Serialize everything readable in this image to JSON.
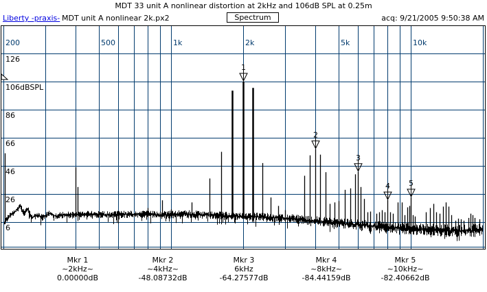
{
  "header": {
    "title": "MDT 33 unit A nonlinear distortion at 2kHz and 106dB SPL at 0.25m",
    "app_link": "Liberty -praxis-",
    "file_name": "MDT unit A nonlinear 2k.px2",
    "view_button": "Spectrum",
    "acquired": "acq: 9/21/2005 9:50:38 AM"
  },
  "chart_data": {
    "type": "line",
    "title": "Spectrum",
    "grid_color": "#003a6d",
    "trace_color": "#000000",
    "x_axis": {
      "scale": "log",
      "min_hz": 200,
      "max_hz": 20000,
      "gridlines_hz": [
        200,
        300,
        400,
        500,
        600,
        700,
        800,
        900,
        1000,
        2000,
        3000,
        4000,
        5000,
        6000,
        7000,
        8000,
        9000,
        10000,
        20000
      ],
      "labels": [
        {
          "f": 200,
          "text": "200"
        },
        {
          "f": 500,
          "text": "500"
        },
        {
          "f": 1000,
          "text": "1k"
        },
        {
          "f": 2000,
          "text": "2k"
        },
        {
          "f": 5000,
          "text": "5k"
        },
        {
          "f": 10000,
          "text": "10k"
        }
      ]
    },
    "y_axis": {
      "unit": "dBSPL",
      "ref_db": 106,
      "gridline_step_db": 20,
      "labels": [
        {
          "db": 126,
          "text": "126"
        },
        {
          "db": 106,
          "text": "106dBSPL"
        },
        {
          "db": 86,
          "text": "86"
        },
        {
          "db": 66,
          "text": "66"
        },
        {
          "db": 46,
          "text": "46"
        },
        {
          "db": 26,
          "text": "26"
        },
        {
          "db": 6,
          "text": "6"
        }
      ]
    },
    "peaks_hz_dbspl": [
      [
        202,
        55
      ],
      [
        400,
        45
      ],
      [
        408,
        31
      ],
      [
        510,
        13
      ],
      [
        600,
        14
      ],
      [
        800,
        16
      ],
      [
        920,
        21.5
      ],
      [
        1000,
        15
      ],
      [
        1220,
        20
      ],
      [
        1450,
        37
      ],
      [
        1620,
        56
      ],
      [
        1800,
        99.5
      ],
      [
        2000,
        106
      ],
      [
        2200,
        101.5
      ],
      [
        2400,
        48
      ],
      [
        2600,
        23.5
      ],
      [
        2800,
        17.5
      ],
      [
        3000,
        14.5
      ],
      [
        3200,
        11.5
      ],
      [
        3600,
        39
      ],
      [
        3800,
        53.5
      ],
      [
        4000,
        57.9
      ],
      [
        4200,
        54
      ],
      [
        4400,
        41.5
      ],
      [
        4600,
        19
      ],
      [
        4800,
        20
      ],
      [
        5000,
        21
      ],
      [
        5300,
        29
      ],
      [
        5600,
        30
      ],
      [
        5860,
        40
      ],
      [
        6000,
        41.7
      ],
      [
        6200,
        31
      ],
      [
        6400,
        22.5
      ],
      [
        6600,
        13
      ],
      [
        6800,
        13.5
      ],
      [
        7200,
        12
      ],
      [
        7400,
        13
      ],
      [
        7600,
        14.5
      ],
      [
        7800,
        13
      ],
      [
        8000,
        21.6
      ],
      [
        8200,
        13
      ],
      [
        8400,
        12
      ],
      [
        8800,
        20
      ],
      [
        9200,
        20
      ],
      [
        9450,
        11
      ],
      [
        9650,
        16.5
      ],
      [
        9900,
        17.5
      ],
      [
        10000,
        23.6
      ],
      [
        10200,
        11
      ],
      [
        10400,
        10
      ],
      [
        11600,
        13
      ],
      [
        12000,
        16
      ],
      [
        12400,
        19
      ],
      [
        12800,
        13
      ],
      [
        13200,
        12
      ],
      [
        13600,
        17
      ],
      [
        14000,
        20
      ],
      [
        14400,
        17
      ],
      [
        14800,
        11
      ],
      [
        15400,
        7
      ],
      [
        15800,
        8.5
      ],
      [
        16200,
        8
      ],
      [
        16600,
        7
      ],
      [
        17400,
        9
      ],
      [
        17800,
        12
      ],
      [
        18100,
        11
      ],
      [
        18500,
        9
      ],
      [
        19300,
        8
      ]
    ],
    "noise_floor_hz_dbspl": [
      [
        200,
        5
      ],
      [
        210,
        10
      ],
      [
        222,
        13
      ],
      [
        234,
        17
      ],
      [
        244,
        12
      ],
      [
        252,
        15
      ],
      [
        262,
        9
      ],
      [
        275,
        11
      ],
      [
        290,
        9
      ],
      [
        310,
        12
      ],
      [
        330,
        10
      ],
      [
        360,
        11
      ],
      [
        400,
        11
      ],
      [
        450,
        11.5
      ],
      [
        550,
        11
      ],
      [
        700,
        11.5
      ],
      [
        900,
        11
      ],
      [
        1100,
        11.5
      ],
      [
        1400,
        11
      ],
      [
        1800,
        10
      ],
      [
        2300,
        9.5
      ],
      [
        3000,
        8.5
      ],
      [
        3800,
        7
      ],
      [
        5000,
        5
      ],
      [
        6500,
        3.5
      ],
      [
        8000,
        2
      ],
      [
        10000,
        1
      ],
      [
        13000,
        0
      ],
      [
        16000,
        -0.5
      ],
      [
        20000,
        0
      ]
    ],
    "noise_jitter_hz_db": [
      [
        200,
        2
      ],
      [
        400,
        2.2
      ],
      [
        1000,
        2.6
      ],
      [
        3000,
        3
      ],
      [
        6000,
        3.5
      ],
      [
        10000,
        4
      ],
      [
        20000,
        4.5
      ]
    ],
    "markers": [
      {
        "n": "1",
        "freq_hz": 2000,
        "db_spl": 106,
        "name": "Mkr 1",
        "freq_label": "~2kHz~",
        "value_label": "0.00000dB"
      },
      {
        "n": "2",
        "freq_hz": 4000,
        "db_spl": 57.91,
        "name": "Mkr 2",
        "freq_label": "~4kHz~",
        "value_label": "-48.08732dB"
      },
      {
        "n": "3",
        "freq_hz": 6000,
        "db_spl": 41.72,
        "name": "Mkr 3",
        "freq_label": "6kHz",
        "value_label": "-64.27577dB"
      },
      {
        "n": "4",
        "freq_hz": 8000,
        "db_spl": 21.56,
        "name": "Mkr 4",
        "freq_label": "~8kHz~",
        "value_label": "-84.44159dB"
      },
      {
        "n": "5",
        "freq_hz": 10000,
        "db_spl": 23.59,
        "name": "Mkr 5",
        "freq_label": "~10kHz~",
        "value_label": "-82.40662dB"
      }
    ]
  }
}
